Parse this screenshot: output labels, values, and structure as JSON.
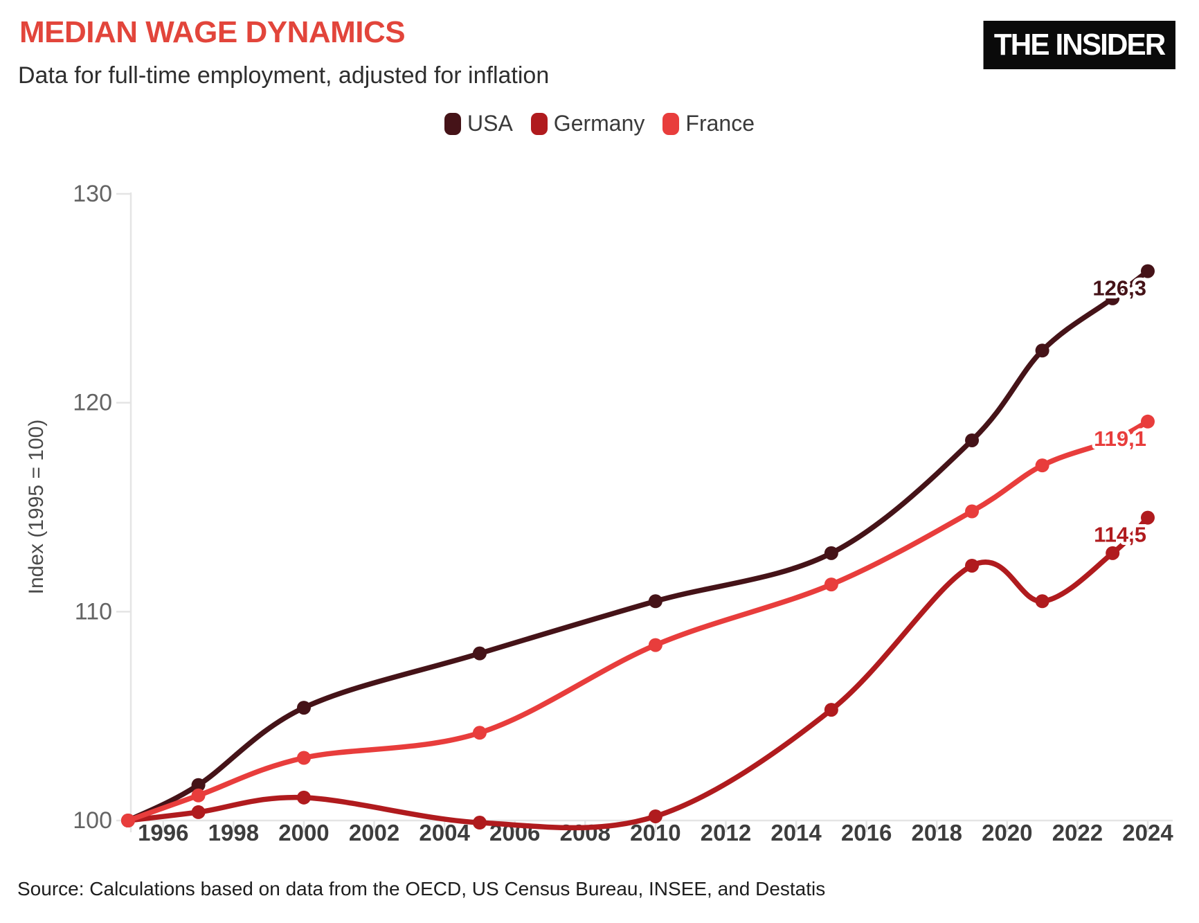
{
  "header": {
    "title": "MEDIAN WAGE DYNAMICS",
    "subtitle": "Data for full-time employment, adjusted for inflation",
    "logo": "THE INSIDER"
  },
  "footer": {
    "source": "Source: Calculations based on data from the OECD, US Census Bureau, INSEE, and Destatis"
  },
  "colors": {
    "title_accent": "#e2453b",
    "axis_line": "#e4e4e4",
    "x_tick_text": "#3d3d3d",
    "y_tick_text": "#646464",
    "axis_title_text": "#4a4a4a",
    "background": "#ffffff",
    "logo_bg": "#0a0a0a",
    "logo_text": "#ffffff"
  },
  "chart_data": {
    "type": "line",
    "title": "MEDIAN WAGE DYNAMICS",
    "subtitle": "Data for full-time employment, adjusted for inflation",
    "ylabel": "Index (1995 = 100)",
    "xlabel": "",
    "grid": false,
    "legend_position": "top-center",
    "xlim": [
      1995,
      2024
    ],
    "ylim": [
      100,
      130
    ],
    "x_ticks": [
      1996,
      1998,
      2000,
      2002,
      2004,
      2006,
      2008,
      2010,
      2012,
      2014,
      2016,
      2018,
      2020,
      2022,
      2024
    ],
    "y_ticks": [
      100,
      110,
      120,
      130
    ],
    "x": [
      1995,
      1997,
      2000,
      2005,
      2010,
      2015,
      2019,
      2021,
      2023,
      2024
    ],
    "series": [
      {
        "name": "USA",
        "color": "#451318",
        "end_label": "126,3",
        "values": [
          100,
          101.7,
          105.4,
          108.0,
          110.5,
          112.8,
          118.2,
          122.5,
          125.0,
          126.3
        ]
      },
      {
        "name": "Germany",
        "color": "#b01b1e",
        "end_label": "114,5",
        "values": [
          100,
          100.4,
          101.1,
          99.9,
          100.2,
          105.3,
          112.2,
          110.5,
          112.8,
          114.5
        ]
      },
      {
        "name": "France",
        "color": "#e83d3c",
        "end_label": "119,1",
        "values": [
          100,
          101.2,
          103.0,
          104.2,
          108.4,
          111.3,
          114.8,
          117.0,
          118.2,
          119.1
        ]
      }
    ],
    "source": "Source: Calculations based on data from the OECD, US Census Bureau, INSEE, and Destatis"
  }
}
